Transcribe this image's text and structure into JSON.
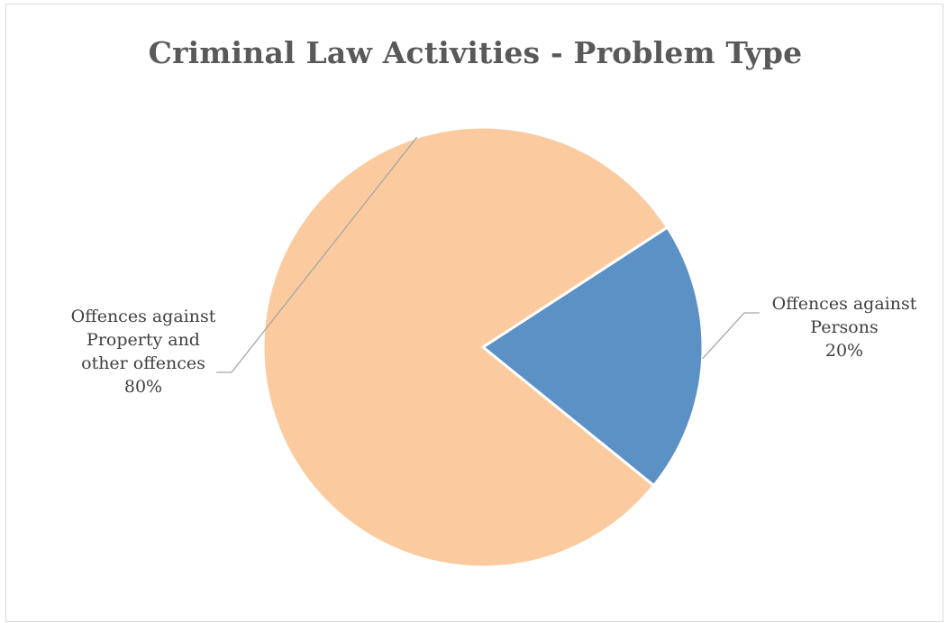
{
  "chart_data": {
    "type": "pie",
    "title": "Criminal Law Activities - Problem Type",
    "categories": [
      "Offences against Persons",
      "Offences against Property and other offences"
    ],
    "values": [
      20,
      80
    ],
    "unit": "%",
    "colors": [
      "#5B91C5",
      "#FBCB9F"
    ],
    "start_angle_deg": 57,
    "direction": "clockwise",
    "labels": [
      {
        "lines": [
          "Offences against",
          "Persons"
        ],
        "value_text": "20%"
      },
      {
        "lines": [
          "Offences against",
          "Property and",
          "other offences"
        ],
        "value_text": "80%"
      }
    ],
    "legend": "none",
    "leader_lines": true
  }
}
